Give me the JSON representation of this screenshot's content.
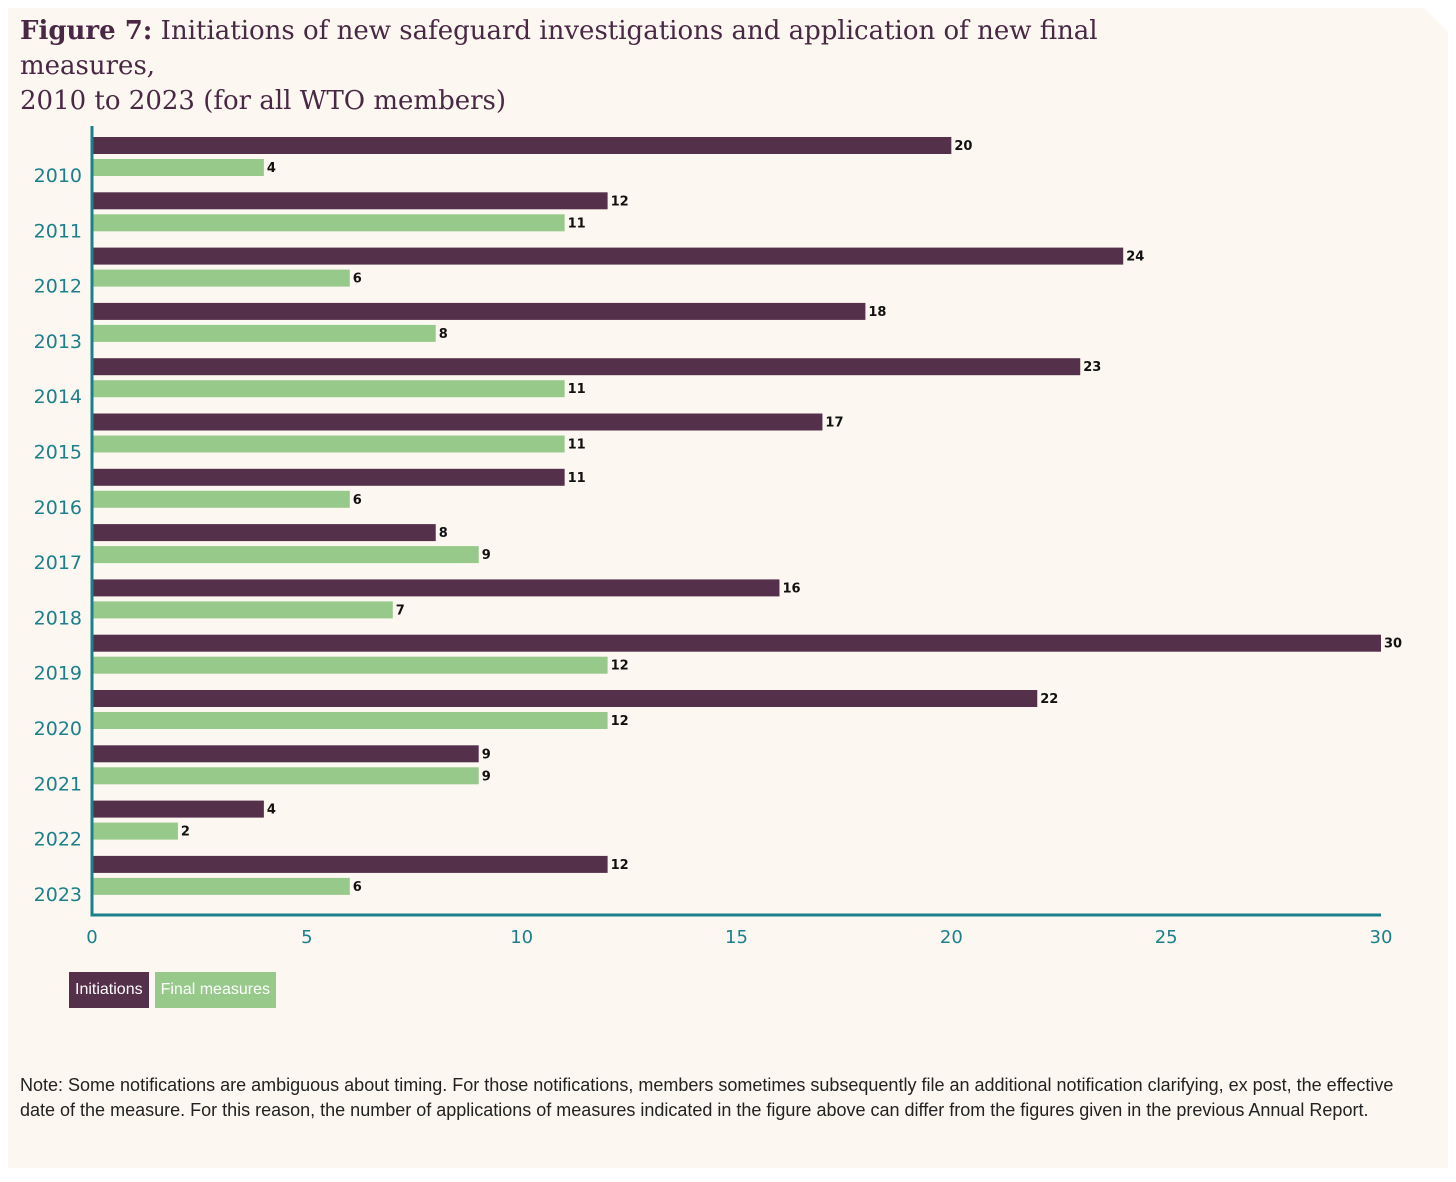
{
  "title": {
    "figure_label": "Figure 7:",
    "line1": "Initiations of new safeguard investigations and application of new final measures,",
    "line2": "2010 to 2023 (for all WTO members)"
  },
  "colors": {
    "initiations": "#54304b",
    "final_measures": "#97c98b",
    "axis": "#1c7f8c"
  },
  "legend": {
    "initiations": "Initiations",
    "final_measures": "Final measures"
  },
  "note": "Note: Some notifications are ambiguous about timing. For those notifications, members sometimes subsequently file an additional notification clarifying, ex post, the effective date of the measure. For this reason, the number of applications of measures indicated in the figure above can differ from the figures given in the previous Annual Report.",
  "chart_data": {
    "type": "bar",
    "orientation": "horizontal",
    "categories": [
      "2010",
      "2011",
      "2012",
      "2013",
      "2014",
      "2015",
      "2016",
      "2017",
      "2018",
      "2019",
      "2020",
      "2021",
      "2022",
      "2023"
    ],
    "series": [
      {
        "name": "Initiations",
        "values": [
          20,
          12,
          24,
          18,
          23,
          17,
          11,
          8,
          16,
          30,
          22,
          9,
          4,
          12
        ]
      },
      {
        "name": "Final measures",
        "values": [
          4,
          11,
          6,
          8,
          11,
          11,
          6,
          9,
          7,
          12,
          12,
          9,
          2,
          6
        ]
      }
    ],
    "xlim": [
      0,
      30
    ],
    "xticks": [
      0,
      5,
      10,
      15,
      20,
      25,
      30
    ],
    "grid": false,
    "legend_position": "bottom-left"
  }
}
